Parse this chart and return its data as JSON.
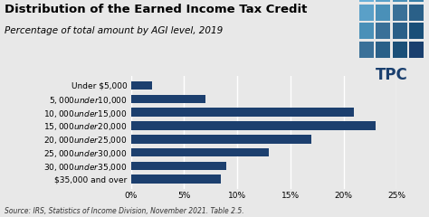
{
  "title": "Distribution of the Earned Income Tax Credit",
  "subtitle": "Percentage of total amount by AGI level, 2019",
  "source": "Source: IRS, Statistics of Income Division, November 2021. Table 2.5.",
  "categories": [
    "Under $5,000",
    "$5,000 under $10,000",
    "$10,000 under $15,000",
    "$15,000 under $20,000",
    "$20,000 under $25,000",
    "$25,000 under $30,000",
    "$30,000 under $35,000",
    "$35,000 and over"
  ],
  "values": [
    2.0,
    7.0,
    21.0,
    23.0,
    17.0,
    13.0,
    9.0,
    8.5
  ],
  "bar_color": "#1c3f6e",
  "background_color": "#e8e8e8",
  "plot_bg_color": "#e8e8e8",
  "xlim": [
    0,
    25
  ],
  "xticks": [
    0,
    5,
    10,
    15,
    20,
    25
  ],
  "xtick_labels": [
    "0%",
    "5%",
    "10%",
    "15%",
    "20%",
    "25%"
  ],
  "title_fontsize": 9.5,
  "subtitle_fontsize": 7.5,
  "source_fontsize": 5.5,
  "tick_fontsize": 6.5,
  "ylabel_fontsize": 6.5,
  "tpc_grid_colors": [
    [
      "#6ab0d8",
      "#5aa0c8",
      "#4a90b8",
      "#3a80a8"
    ],
    [
      "#5aa0c8",
      "#4a90b8",
      "#3a7098",
      "#2a6088"
    ],
    [
      "#4a90b8",
      "#3a7098",
      "#2a5f88",
      "#1a4f78"
    ],
    [
      "#3a7098",
      "#2a6088",
      "#1a4f78",
      "#1a3f6e"
    ]
  ]
}
